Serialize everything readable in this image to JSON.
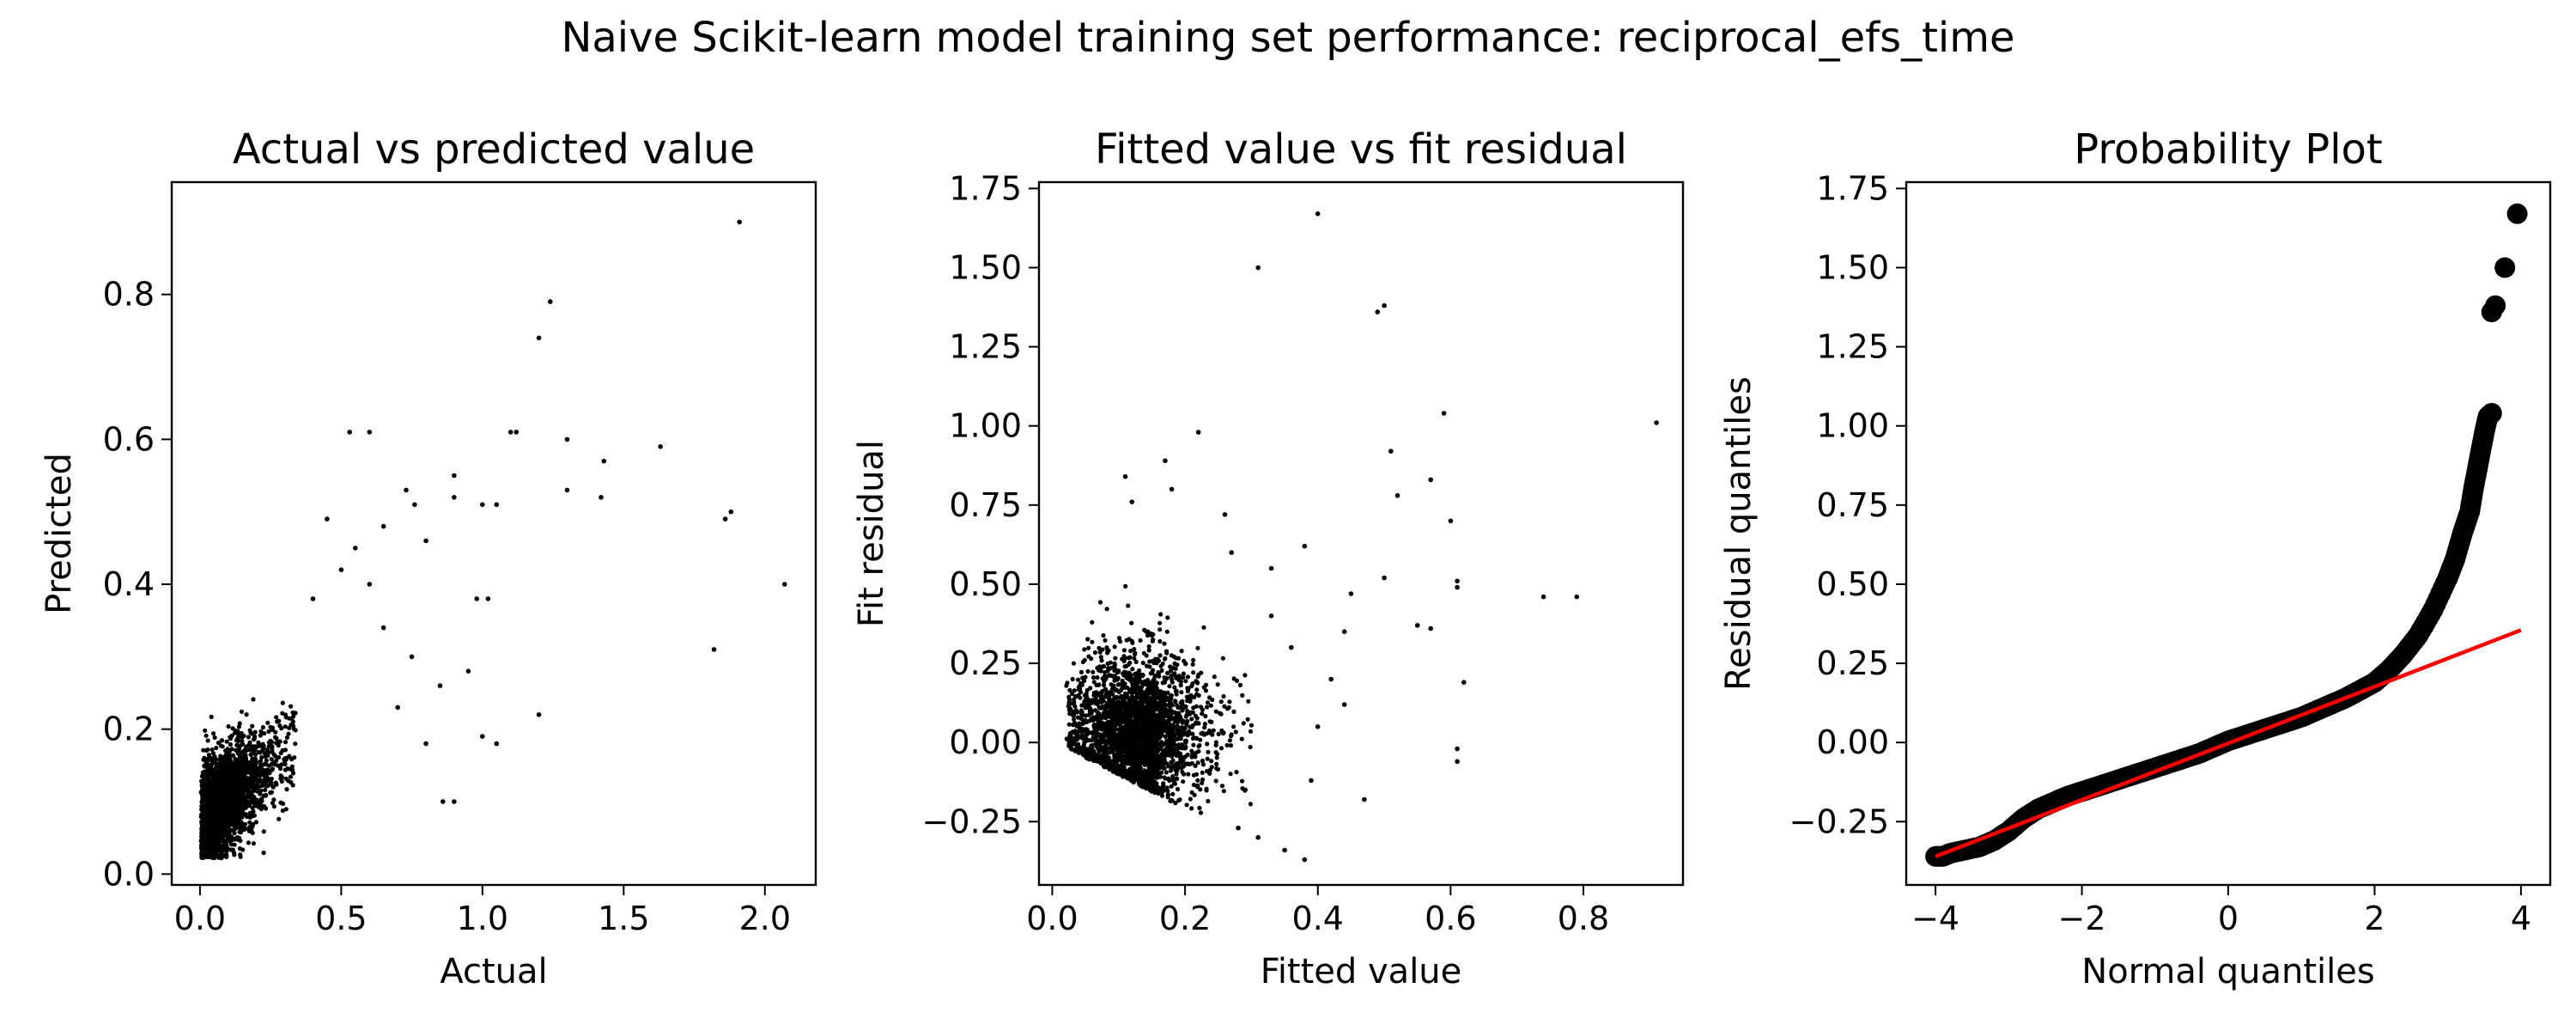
{
  "suptitle": "Naive Scikit-learn model training set performance: reciprocal_efs_time",
  "chart_data": [
    {
      "type": "scatter",
      "title": "Actual vs predicted value",
      "xlabel": "Actual",
      "ylabel": "Predicted",
      "xlim": [
        -0.1,
        2.18
      ],
      "ylim": [
        -0.015,
        0.955
      ],
      "xticks": [
        0.0,
        0.5,
        1.0,
        1.5,
        2.0
      ],
      "xtick_labels": [
        "0.0",
        "0.5",
        "1.0",
        "1.5",
        "2.0"
      ],
      "yticks": [
        0.0,
        0.2,
        0.4,
        0.6,
        0.8
      ],
      "ytick_labels": [
        "0.0",
        "0.2",
        "0.4",
        "0.6",
        "0.8"
      ],
      "marker_color": "#000000",
      "cloud": {
        "n": 2600,
        "x_range": [
          0.0,
          0.35
        ],
        "y_range": [
          0.02,
          0.33
        ]
      },
      "points": [
        [
          1.91,
          0.9
        ],
        [
          1.24,
          0.79
        ],
        [
          1.2,
          0.74
        ],
        [
          0.53,
          0.61
        ],
        [
          0.6,
          0.61
        ],
        [
          1.1,
          0.61
        ],
        [
          1.12,
          0.61
        ],
        [
          1.3,
          0.6
        ],
        [
          1.43,
          0.57
        ],
        [
          1.63,
          0.59
        ],
        [
          1.3,
          0.53
        ],
        [
          1.42,
          0.52
        ],
        [
          1.86,
          0.49
        ],
        [
          1.88,
          0.5
        ],
        [
          2.07,
          0.4
        ],
        [
          1.82,
          0.31
        ],
        [
          1.0,
          0.51
        ],
        [
          1.05,
          0.51
        ],
        [
          0.9,
          0.55
        ],
        [
          0.9,
          0.52
        ],
        [
          0.73,
          0.53
        ],
        [
          0.76,
          0.51
        ],
        [
          0.8,
          0.46
        ],
        [
          0.98,
          0.38
        ],
        [
          1.02,
          0.38
        ],
        [
          0.95,
          0.28
        ],
        [
          1.0,
          0.19
        ],
        [
          1.05,
          0.18
        ],
        [
          1.2,
          0.22
        ],
        [
          0.85,
          0.26
        ],
        [
          0.7,
          0.23
        ],
        [
          0.75,
          0.3
        ],
        [
          0.86,
          0.1
        ],
        [
          0.9,
          0.1
        ],
        [
          0.8,
          0.18
        ],
        [
          0.65,
          0.34
        ],
        [
          0.6,
          0.4
        ],
        [
          0.55,
          0.45
        ],
        [
          0.65,
          0.48
        ],
        [
          0.45,
          0.49
        ],
        [
          0.5,
          0.42
        ],
        [
          0.4,
          0.38
        ]
      ]
    },
    {
      "type": "scatter",
      "title": "Fitted value vs fit residual",
      "xlabel": "Fitted value",
      "ylabel": "Fit residual",
      "xlim": [
        -0.02,
        0.95
      ],
      "ylim": [
        -0.45,
        1.77
      ],
      "xticks": [
        0.0,
        0.2,
        0.4,
        0.6,
        0.8
      ],
      "xtick_labels": [
        "0.0",
        "0.2",
        "0.4",
        "0.6",
        "0.8"
      ],
      "yticks": [
        -0.25,
        0.0,
        0.25,
        0.5,
        0.75,
        1.0,
        1.25,
        1.5,
        1.75
      ],
      "ytick_labels": [
        "−0.25",
        "0.00",
        "0.25",
        "0.50",
        "0.75",
        "1.00",
        "1.25",
        "1.50",
        "1.75"
      ],
      "marker_color": "#000000",
      "cloud": {
        "n": 2600,
        "x_range": [
          0.02,
          0.3
        ],
        "y_range": [
          -0.3,
          0.6
        ]
      },
      "points": [
        [
          0.4,
          1.67
        ],
        [
          0.31,
          1.5
        ],
        [
          0.49,
          1.36
        ],
        [
          0.5,
          1.38
        ],
        [
          0.59,
          1.04
        ],
        [
          0.91,
          1.01
        ],
        [
          0.22,
          0.98
        ],
        [
          0.51,
          0.92
        ],
        [
          0.57,
          0.83
        ],
        [
          0.52,
          0.78
        ],
        [
          0.6,
          0.7
        ],
        [
          0.17,
          0.89
        ],
        [
          0.11,
          0.84
        ],
        [
          0.18,
          0.8
        ],
        [
          0.12,
          0.76
        ],
        [
          0.26,
          0.72
        ],
        [
          0.27,
          0.6
        ],
        [
          0.74,
          0.46
        ],
        [
          0.79,
          0.46
        ],
        [
          0.61,
          0.51
        ],
        [
          0.61,
          0.49
        ],
        [
          0.5,
          0.52
        ],
        [
          0.45,
          0.47
        ],
        [
          0.55,
          0.37
        ],
        [
          0.57,
          0.36
        ],
        [
          0.62,
          0.19
        ],
        [
          0.61,
          -0.02
        ],
        [
          0.61,
          -0.06
        ],
        [
          0.47,
          -0.18
        ],
        [
          0.38,
          -0.37
        ],
        [
          0.35,
          -0.34
        ],
        [
          0.42,
          0.2
        ],
        [
          0.44,
          0.12
        ],
        [
          0.36,
          0.3
        ],
        [
          0.33,
          0.4
        ],
        [
          0.4,
          0.05
        ],
        [
          0.31,
          -0.3
        ],
        [
          0.28,
          -0.27
        ],
        [
          0.38,
          0.62
        ],
        [
          0.33,
          0.55
        ],
        [
          0.44,
          0.35
        ],
        [
          0.39,
          -0.12
        ]
      ]
    },
    {
      "type": "scatter",
      "title": "Probability Plot",
      "xlabel": "Normal quantiles",
      "ylabel": "Residual quantiles",
      "xlim": [
        -4.4,
        4.4
      ],
      "ylim": [
        -0.45,
        1.77
      ],
      "xticks": [
        -4,
        -2,
        0,
        2,
        4
      ],
      "xtick_labels": [
        "−4",
        "−2",
        "0",
        "2",
        "4"
      ],
      "yticks": [
        -0.25,
        0.0,
        0.25,
        0.5,
        0.75,
        1.0,
        1.25,
        1.5,
        1.75
      ],
      "ytick_labels": [
        "−0.25",
        "0.00",
        "0.25",
        "0.50",
        "0.75",
        "1.00",
        "1.25",
        "1.50",
        "1.75"
      ],
      "marker_color": "#000000",
      "fit_line": {
        "x": [
          -4.0,
          4.0
        ],
        "y": [
          -0.36,
          0.355
        ],
        "color": "#ff0000"
      },
      "points": [
        [
          -4.0,
          -0.36
        ],
        [
          -3.9,
          -0.36
        ],
        [
          -3.8,
          -0.35
        ],
        [
          -3.6,
          -0.34
        ],
        [
          -3.4,
          -0.33
        ],
        [
          -3.2,
          -0.31
        ],
        [
          -3.0,
          -0.28
        ],
        [
          -2.8,
          -0.24
        ],
        [
          -2.6,
          -0.21
        ],
        [
          -2.4,
          -0.19
        ],
        [
          -2.2,
          -0.17
        ],
        [
          -2.0,
          -0.155
        ],
        [
          -1.8,
          -0.14
        ],
        [
          -1.6,
          -0.125
        ],
        [
          -1.4,
          -0.11
        ],
        [
          -1.2,
          -0.095
        ],
        [
          -1.0,
          -0.08
        ],
        [
          -0.8,
          -0.065
        ],
        [
          -0.6,
          -0.05
        ],
        [
          -0.4,
          -0.035
        ],
        [
          -0.2,
          -0.015
        ],
        [
          0.0,
          0.005
        ],
        [
          0.2,
          0.02
        ],
        [
          0.4,
          0.035
        ],
        [
          0.6,
          0.05
        ],
        [
          0.8,
          0.065
        ],
        [
          1.0,
          0.08
        ],
        [
          1.2,
          0.1
        ],
        [
          1.4,
          0.12
        ],
        [
          1.6,
          0.14
        ],
        [
          1.8,
          0.165
        ],
        [
          2.0,
          0.19
        ],
        [
          2.2,
          0.23
        ],
        [
          2.4,
          0.28
        ],
        [
          2.6,
          0.34
        ],
        [
          2.8,
          0.42
        ],
        [
          3.0,
          0.52
        ],
        [
          3.1,
          0.58
        ],
        [
          3.2,
          0.66
        ],
        [
          3.3,
          0.73
        ],
        [
          3.35,
          0.8
        ],
        [
          3.4,
          0.86
        ],
        [
          3.45,
          0.92
        ],
        [
          3.5,
          0.98
        ],
        [
          3.55,
          1.03
        ],
        [
          3.6,
          1.04
        ],
        [
          3.6,
          1.36
        ],
        [
          3.65,
          1.38
        ],
        [
          3.78,
          1.5
        ],
        [
          3.95,
          1.67
        ]
      ]
    }
  ]
}
